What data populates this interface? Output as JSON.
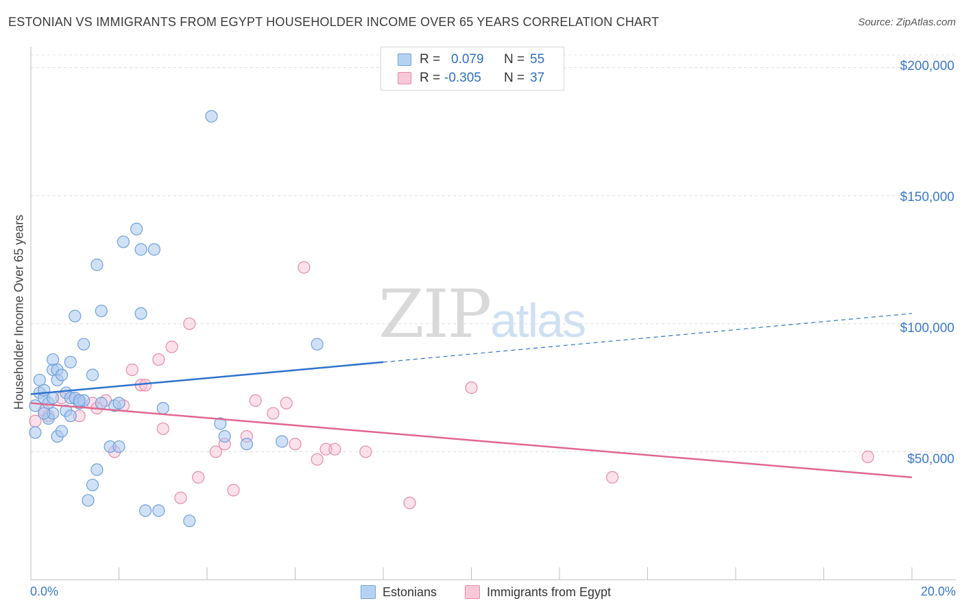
{
  "header": {
    "title": "ESTONIAN VS IMMIGRANTS FROM EGYPT HOUSEHOLDER INCOME OVER 65 YEARS CORRELATION CHART",
    "source": "Source: ZipAtlas.com"
  },
  "watermark": {
    "zip": "ZIP",
    "atlas": "atlas"
  },
  "legend": {
    "rows": [
      {
        "r_label": "R =",
        "r_value": "0.079",
        "n_label": "N =",
        "n_value": "55"
      },
      {
        "r_label": "R =",
        "r_value": "-0.305",
        "n_label": "N =",
        "n_value": "37"
      }
    ]
  },
  "bottom_legend": {
    "estonians": "Estonians",
    "egypt": "Immigrants from Egypt"
  },
  "chart_data": {
    "type": "scatter",
    "title": "ESTONIAN VS IMMIGRANTS FROM EGYPT HOUSEHOLDER INCOME OVER 65 YEARS CORRELATION CHART",
    "xlabel": "",
    "ylabel": "Householder Income Over 65 years",
    "xlim": [
      0,
      20
    ],
    "ylim": [
      0,
      205000
    ],
    "x_tick_labels": [
      "0.0%",
      "20.0%"
    ],
    "y_ticks": [
      50000,
      100000,
      150000,
      200000
    ],
    "y_tick_labels": [
      "$50,000",
      "$100,000",
      "$150,000",
      "$200,000"
    ],
    "grid": true,
    "colors": {
      "estonians_fill": "#a9c9f0",
      "estonians_stroke": "#6f9fd8",
      "estonians_line": "#2e72cc",
      "egypt_fill": "#f5bcd0",
      "egypt_stroke": "#e48aab",
      "egypt_line": "#e0668f"
    },
    "series": [
      {
        "name": "Estonians",
        "points": [
          [
            0.1,
            57500
          ],
          [
            0.1,
            68000
          ],
          [
            0.2,
            73000
          ],
          [
            0.2,
            78000
          ],
          [
            0.3,
            71000
          ],
          [
            0.3,
            74000
          ],
          [
            0.4,
            69000
          ],
          [
            0.4,
            63000
          ],
          [
            0.5,
            71000
          ],
          [
            0.5,
            82000
          ],
          [
            0.5,
            65000
          ],
          [
            0.5,
            86000
          ],
          [
            0.6,
            82000
          ],
          [
            0.6,
            78000
          ],
          [
            0.6,
            56000
          ],
          [
            0.7,
            58000
          ],
          [
            0.7,
            80000
          ],
          [
            0.8,
            66000
          ],
          [
            0.8,
            73000
          ],
          [
            0.9,
            71000
          ],
          [
            0.9,
            85000
          ],
          [
            0.9,
            64000
          ],
          [
            1.0,
            103000
          ],
          [
            1.0,
            71000
          ],
          [
            1.1,
            69000
          ],
          [
            1.2,
            70000
          ],
          [
            1.2,
            92000
          ],
          [
            1.3,
            31000
          ],
          [
            1.4,
            80000
          ],
          [
            1.4,
            37000
          ],
          [
            1.5,
            123000
          ],
          [
            1.5,
            43000
          ],
          [
            1.6,
            69000
          ],
          [
            1.6,
            105000
          ],
          [
            1.8,
            52000
          ],
          [
            1.9,
            68000
          ],
          [
            2.0,
            52000
          ],
          [
            2.0,
            69000
          ],
          [
            2.1,
            132000
          ],
          [
            2.4,
            137000
          ],
          [
            2.5,
            104000
          ],
          [
            2.5,
            129000
          ],
          [
            2.6,
            27000
          ],
          [
            2.8,
            129000
          ],
          [
            2.9,
            27000
          ],
          [
            3.0,
            67000
          ],
          [
            3.6,
            23000
          ],
          [
            4.1,
            181000
          ],
          [
            4.4,
            56000
          ],
          [
            4.3,
            61000
          ],
          [
            4.9,
            53000
          ],
          [
            5.7,
            54000
          ],
          [
            6.5,
            92000
          ],
          [
            0.3,
            65000
          ],
          [
            1.1,
            70000
          ]
        ],
        "trend": {
          "x_start": 0,
          "y_start": 72500,
          "x_solid_end": 8,
          "y_solid_end": 85000,
          "x_end": 20,
          "y_end": 104000
        }
      },
      {
        "name": "Immigrants from Egypt",
        "points": [
          [
            0.1,
            62000
          ],
          [
            0.3,
            66000
          ],
          [
            0.4,
            64000
          ],
          [
            0.7,
            71000
          ],
          [
            1.0,
            71000
          ],
          [
            1.1,
            64000
          ],
          [
            1.4,
            69000
          ],
          [
            1.5,
            67000
          ],
          [
            1.7,
            70000
          ],
          [
            1.9,
            50000
          ],
          [
            2.1,
            68000
          ],
          [
            2.3,
            82000
          ],
          [
            2.5,
            76000
          ],
          [
            2.6,
            76000
          ],
          [
            2.9,
            86000
          ],
          [
            3.0,
            59000
          ],
          [
            3.2,
            91000
          ],
          [
            3.4,
            32000
          ],
          [
            3.6,
            100000
          ],
          [
            3.8,
            40000
          ],
          [
            4.2,
            50000
          ],
          [
            4.4,
            53000
          ],
          [
            4.6,
            35000
          ],
          [
            4.9,
            56000
          ],
          [
            5.1,
            70000
          ],
          [
            5.5,
            65000
          ],
          [
            5.8,
            69000
          ],
          [
            6.0,
            53000
          ],
          [
            6.2,
            122000
          ],
          [
            6.5,
            47000
          ],
          [
            6.7,
            51000
          ],
          [
            6.9,
            51000
          ],
          [
            7.6,
            50000
          ],
          [
            8.6,
            30000
          ],
          [
            10.0,
            75000
          ],
          [
            13.2,
            40000
          ],
          [
            19.0,
            48000
          ]
        ],
        "trend": {
          "x_start": 0,
          "y_start": 69000,
          "x_end": 20,
          "y_end": 40000
        }
      }
    ]
  }
}
